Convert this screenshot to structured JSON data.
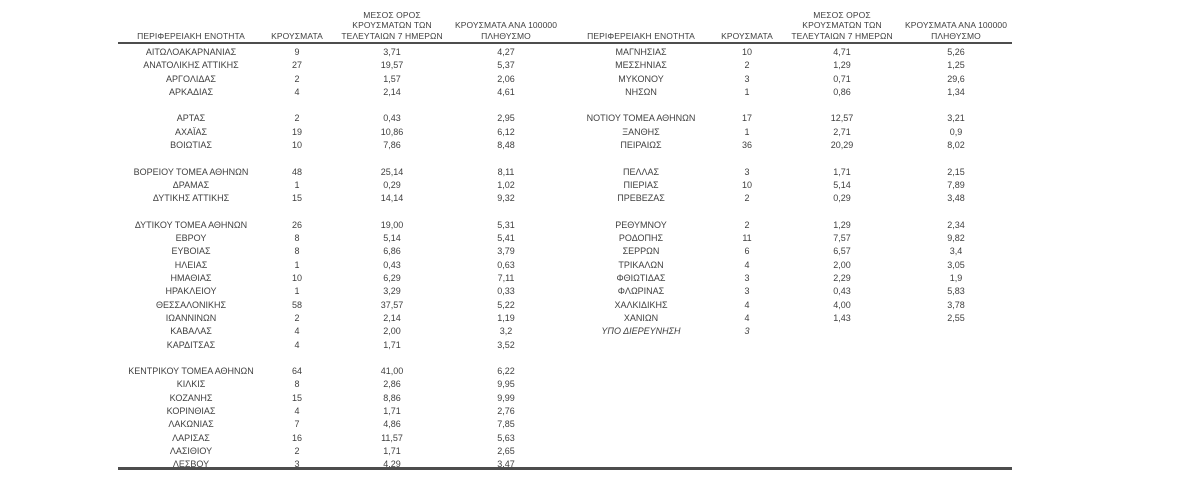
{
  "page": {
    "background": "#ffffff",
    "text_color": "#3f3f3f",
    "rule_color": "#4d4d4d"
  },
  "columns": [
    {
      "key": "region",
      "lines": [
        "ΠΕΡΙΦΕΡΕΙΑΚΗ ΕΝΟΤΗΤΑ"
      ]
    },
    {
      "key": "cases",
      "lines": [
        "ΚΡΟΥΣΜΑΤΑ"
      ]
    },
    {
      "key": "avg7",
      "lines": [
        "ΜΕΣΟΣ ΟΡΟΣ",
        "ΚΡΟΥΣΜΑΤΩΝ ΤΩΝ",
        "ΤΕΛΕΥΤΑΙΩΝ 7 ΗΜΕΡΩΝ"
      ]
    },
    {
      "key": "per100k",
      "lines": [
        "ΚΡΟΥΣΜΑΤΑ ΑΝΑ 100000",
        "ΠΛΗΘΥΣΜΟ"
      ]
    }
  ],
  "tables": [
    {
      "rows": [
        {
          "region": "ΑΙΤΩΛΟΑΚΑΡΝΑΝΙΑΣ",
          "cases": "9",
          "avg7": "3,71",
          "per100k": "4,27"
        },
        {
          "region": "ΑΝΑΤΟΛΙΚΗΣ ΑΤΤΙΚΗΣ",
          "cases": "27",
          "avg7": "19,57",
          "per100k": "5,37"
        },
        {
          "region": "ΑΡΓΟΛΙΔΑΣ",
          "cases": "2",
          "avg7": "1,57",
          "per100k": "2,06"
        },
        {
          "region": "ΑΡΚΑΔΙΑΣ",
          "cases": "4",
          "avg7": "2,14",
          "per100k": "4,61"
        },
        null,
        {
          "region": "ΑΡΤΑΣ",
          "cases": "2",
          "avg7": "0,43",
          "per100k": "2,95"
        },
        {
          "region": "ΑΧΑΪΑΣ",
          "cases": "19",
          "avg7": "10,86",
          "per100k": "6,12"
        },
        {
          "region": "ΒΟΙΩΤΙΑΣ",
          "cases": "10",
          "avg7": "7,86",
          "per100k": "8,48"
        },
        null,
        {
          "region": "ΒΟΡΕΙΟΥ ΤΟΜΕΑ ΑΘΗΝΩΝ",
          "cases": "48",
          "avg7": "25,14",
          "per100k": "8,11"
        },
        {
          "region": "ΔΡΑΜΑΣ",
          "cases": "1",
          "avg7": "0,29",
          "per100k": "1,02"
        },
        {
          "region": "ΔΥΤΙΚΗΣ ΑΤΤΙΚΗΣ",
          "cases": "15",
          "avg7": "14,14",
          "per100k": "9,32"
        },
        null,
        {
          "region": "ΔΥΤΙΚΟΥ ΤΟΜΕΑ ΑΘΗΝΩΝ",
          "cases": "26",
          "avg7": "19,00",
          "per100k": "5,31"
        },
        {
          "region": "ΕΒΡΟΥ",
          "cases": "8",
          "avg7": "5,14",
          "per100k": "5,41"
        },
        {
          "region": "ΕΥΒΟΙΑΣ",
          "cases": "8",
          "avg7": "6,86",
          "per100k": "3,79"
        },
        {
          "region": "ΗΛΕΙΑΣ",
          "cases": "1",
          "avg7": "0,43",
          "per100k": "0,63"
        },
        {
          "region": "ΗΜΑΘΙΑΣ",
          "cases": "10",
          "avg7": "6,29",
          "per100k": "7,11"
        },
        {
          "region": "ΗΡΑΚΛΕΙΟΥ",
          "cases": "1",
          "avg7": "3,29",
          "per100k": "0,33"
        },
        {
          "region": "ΘΕΣΣΑΛΟΝΙΚΗΣ",
          "cases": "58",
          "avg7": "37,57",
          "per100k": "5,22"
        },
        {
          "region": "ΙΩΑΝΝΙΝΩΝ",
          "cases": "2",
          "avg7": "2,14",
          "per100k": "1,19"
        },
        {
          "region": "ΚΑΒΑΛΑΣ",
          "cases": "4",
          "avg7": "2,00",
          "per100k": "3,2"
        },
        {
          "region": "ΚΑΡΔΙΤΣΑΣ",
          "cases": "4",
          "avg7": "1,71",
          "per100k": "3,52"
        },
        null,
        {
          "region": "ΚΕΝΤΡΙΚΟΥ ΤΟΜΕΑ ΑΘΗΝΩΝ",
          "cases": "64",
          "avg7": "41,00",
          "per100k": "6,22"
        },
        {
          "region": "ΚΙΛΚΙΣ",
          "cases": "8",
          "avg7": "2,86",
          "per100k": "9,95"
        },
        {
          "region": "ΚΟΖΑΝΗΣ",
          "cases": "15",
          "avg7": "8,86",
          "per100k": "9,99"
        },
        {
          "region": "ΚΟΡΙΝΘΙΑΣ",
          "cases": "4",
          "avg7": "1,71",
          "per100k": "2,76"
        },
        {
          "region": "ΛΑΚΩΝΙΑΣ",
          "cases": "7",
          "avg7": "4,86",
          "per100k": "7,85"
        },
        {
          "region": "ΛΑΡΙΣΑΣ",
          "cases": "16",
          "avg7": "11,57",
          "per100k": "5,63"
        },
        {
          "region": "ΛΑΣΙΘΙΟΥ",
          "cases": "2",
          "avg7": "1,71",
          "per100k": "2,65"
        },
        {
          "region": "ΛΕΣΒΟΥ",
          "cases": "3",
          "avg7": "4,29",
          "per100k": "3,47"
        }
      ]
    },
    {
      "rows": [
        {
          "region": "ΜΑΓΝΗΣΙΑΣ",
          "cases": "10",
          "avg7": "4,71",
          "per100k": "5,26"
        },
        {
          "region": "ΜΕΣΣΗΝΙΑΣ",
          "cases": "2",
          "avg7": "1,29",
          "per100k": "1,25"
        },
        {
          "region": "ΜΥΚΟΝΟΥ",
          "cases": "3",
          "avg7": "0,71",
          "per100k": "29,6"
        },
        {
          "region": "ΝΗΣΩΝ",
          "cases": "1",
          "avg7": "0,86",
          "per100k": "1,34"
        },
        null,
        {
          "region": "ΝΟΤΙΟΥ ΤΟΜΕΑ ΑΘΗΝΩΝ",
          "cases": "17",
          "avg7": "12,57",
          "per100k": "3,21"
        },
        {
          "region": "ΞΑΝΘΗΣ",
          "cases": "1",
          "avg7": "2,71",
          "per100k": "0,9"
        },
        {
          "region": "ΠΕΙΡΑΙΩΣ",
          "cases": "36",
          "avg7": "20,29",
          "per100k": "8,02"
        },
        null,
        {
          "region": "ΠΕΛΛΑΣ",
          "cases": "3",
          "avg7": "1,71",
          "per100k": "2,15"
        },
        {
          "region": "ΠΙΕΡΙΑΣ",
          "cases": "10",
          "avg7": "5,14",
          "per100k": "7,89"
        },
        {
          "region": "ΠΡΕΒΕΖΑΣ",
          "cases": "2",
          "avg7": "0,29",
          "per100k": "3,48"
        },
        null,
        {
          "region": "ΡΕΘΥΜΝΟΥ",
          "cases": "2",
          "avg7": "1,29",
          "per100k": "2,34"
        },
        {
          "region": "ΡΟΔΟΠΗΣ",
          "cases": "11",
          "avg7": "7,57",
          "per100k": "9,82"
        },
        {
          "region": "ΣΕΡΡΩΝ",
          "cases": "6",
          "avg7": "6,57",
          "per100k": "3,4"
        },
        {
          "region": "ΤΡΙΚΑΛΩΝ",
          "cases": "4",
          "avg7": "2,00",
          "per100k": "3,05"
        },
        {
          "region": "ΦΘΙΩΤΙΔΑΣ",
          "cases": "3",
          "avg7": "2,29",
          "per100k": "1,9"
        },
        {
          "region": "ΦΛΩΡΙΝΑΣ",
          "cases": "3",
          "avg7": "0,43",
          "per100k": "5,83"
        },
        {
          "region": "ΧΑΛΚΙΔΙΚΗΣ",
          "cases": "4",
          "avg7": "4,00",
          "per100k": "3,78"
        },
        {
          "region": "ΧΑΝΙΩΝ",
          "cases": "4",
          "avg7": "1,43",
          "per100k": "2,55"
        },
        {
          "region": "ΥΠΟ ΔΙΕΡΕΥΝΗΣΗ",
          "cases": "3",
          "avg7": "",
          "per100k": "",
          "italic": true
        }
      ]
    }
  ]
}
